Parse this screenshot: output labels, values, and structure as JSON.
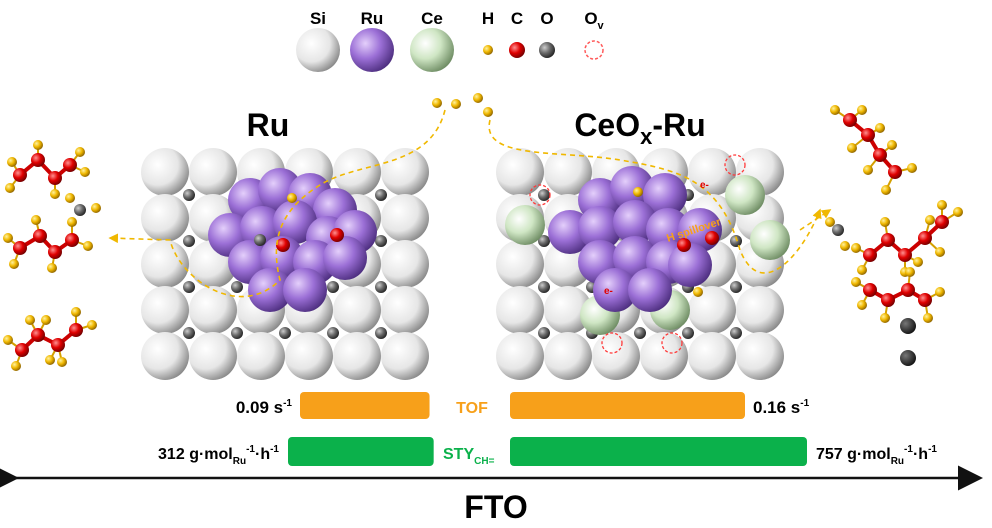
{
  "legend": [
    {
      "label": "Si",
      "color": "#f2f2f2"
    },
    {
      "label": "Ru",
      "color": "#9b6fd6"
    },
    {
      "label": "Ce",
      "color": "#cfe6c4"
    },
    {
      "label": "H",
      "color": "#f0b800"
    },
    {
      "label": "C",
      "color": "#e00000"
    },
    {
      "label": "O",
      "color": "#6a6a6a"
    },
    {
      "label": "O",
      "sub": "v",
      "color": "#ff5a5a"
    }
  ],
  "panels": {
    "left_title": "Ru",
    "right_title": {
      "main": "CeO",
      "sub": "x",
      "suffix": "-Ru"
    },
    "spillover_label": "H spillover",
    "electron_label": "e-"
  },
  "metrics": {
    "tof": {
      "label": "TOF",
      "left_value": "0.09 s",
      "left_sup": "-1",
      "right_value": "0.16 s",
      "right_sup": "-1",
      "left": 0.09,
      "right": 0.16,
      "color": "#f7a01a"
    },
    "sty": {
      "label": "STY",
      "label_sub": "CH=",
      "left_value": "312",
      "right_value": "757",
      "unit": "g·mol",
      "unit_sub": "Ru",
      "unit_sup1": "-1",
      "unit_mid": "·h",
      "unit_sup2": "-1",
      "left": 312,
      "right": 757,
      "color": "#0bb14b"
    }
  },
  "axis_label": "FTO"
}
